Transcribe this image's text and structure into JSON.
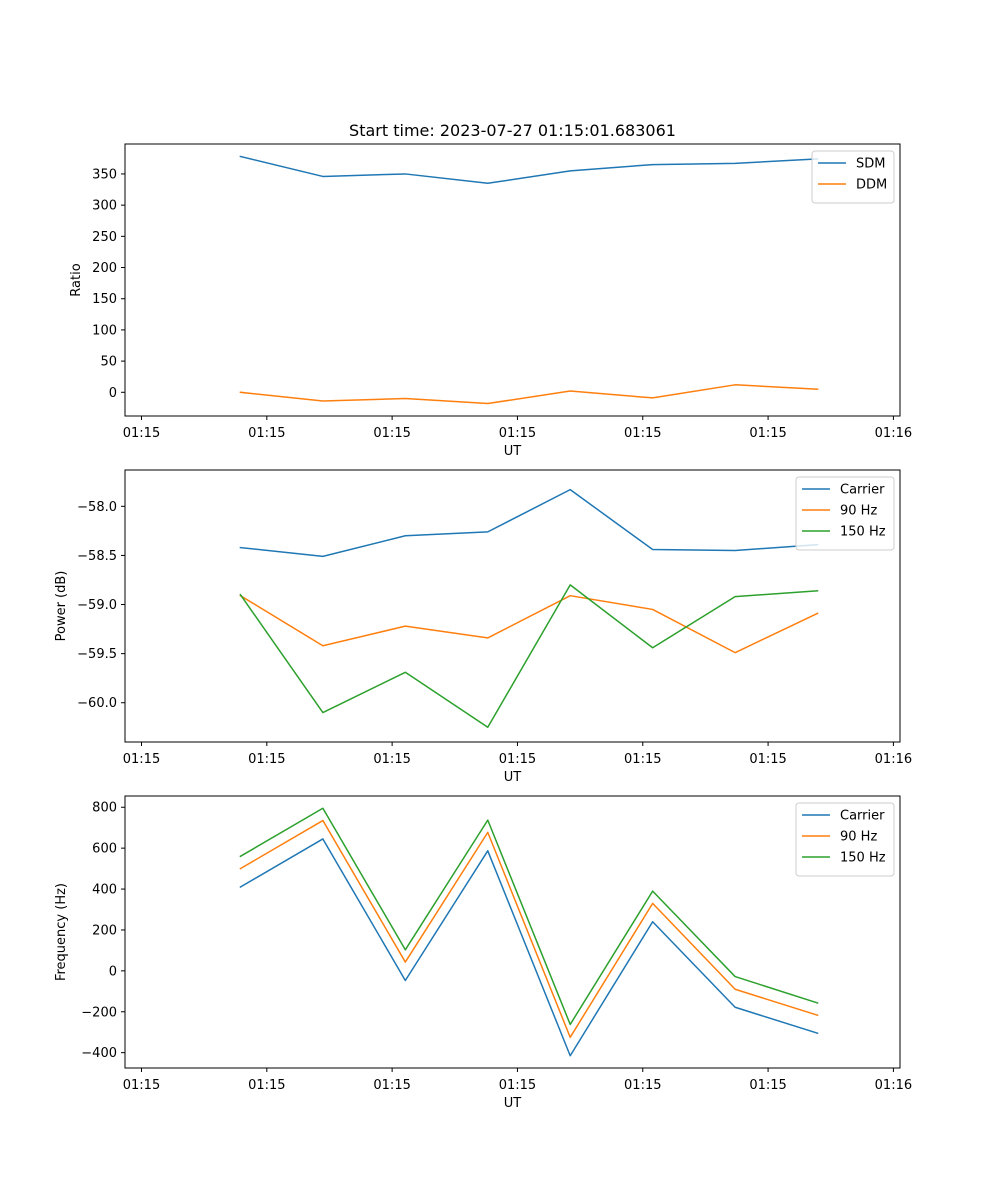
{
  "chart_data": [
    {
      "type": "line",
      "title": "Start time: 2023-07-27 01:15:01.683061",
      "xlabel": "UT",
      "ylabel": "Ratio",
      "xlim": [
        -0.4,
        9.0
      ],
      "ylim": [
        -38,
        398
      ],
      "x": [
        1,
        2,
        3,
        4,
        5,
        6,
        7,
        8
      ],
      "xticks": [
        -0.2,
        1.32,
        2.84,
        4.36,
        5.88,
        7.4,
        8.92
      ],
      "xtick_labels": [
        "01:15",
        "01:15",
        "01:15",
        "01:15",
        "01:15",
        "01:15",
        "01:16"
      ],
      "yticks": [
        0,
        50,
        100,
        150,
        200,
        250,
        300,
        350
      ],
      "ytick_labels": [
        "0",
        "50",
        "100",
        "150",
        "200",
        "250",
        "300",
        "350"
      ],
      "legend_position": "upper-right",
      "series": [
        {
          "name": "SDM",
          "color": "#1f77b4",
          "values": [
            378,
            346,
            350,
            335,
            355,
            365,
            367,
            374
          ]
        },
        {
          "name": "DDM",
          "color": "#ff7f0e",
          "values": [
            0,
            -14,
            -10,
            -18,
            2,
            -9,
            12,
            5
          ]
        }
      ]
    },
    {
      "type": "line",
      "title": "",
      "xlabel": "UT",
      "ylabel": "Power (dB)",
      "xlim": [
        -0.4,
        9.0
      ],
      "ylim": [
        -60.4,
        -57.63
      ],
      "x": [
        1,
        2,
        3,
        4,
        5,
        6,
        7,
        8
      ],
      "xticks": [
        -0.2,
        1.32,
        2.84,
        4.36,
        5.88,
        7.4,
        8.92
      ],
      "xtick_labels": [
        "01:15",
        "01:15",
        "01:15",
        "01:15",
        "01:15",
        "01:15",
        "01:16"
      ],
      "yticks": [
        -60.0,
        -59.5,
        -59.0,
        -58.5,
        -58.0
      ],
      "ytick_labels": [
        "−60.0",
        "−59.5",
        "−59.0",
        "−58.5",
        "−58.0"
      ],
      "legend_position": "upper-right",
      "series": [
        {
          "name": "Carrier",
          "color": "#1f77b4",
          "values": [
            -58.42,
            -58.51,
            -58.3,
            -58.26,
            -57.83,
            -58.44,
            -58.45,
            -58.39
          ]
        },
        {
          "name": "90 Hz",
          "color": "#ff7f0e",
          "values": [
            -58.91,
            -59.42,
            -59.22,
            -59.34,
            -58.91,
            -59.05,
            -59.49,
            -59.09
          ]
        },
        {
          "name": "150 Hz",
          "color": "#2ca02c",
          "values": [
            -58.9,
            -60.1,
            -59.69,
            -60.25,
            -58.8,
            -59.44,
            -58.92,
            -58.86
          ]
        }
      ]
    },
    {
      "type": "line",
      "title": "",
      "xlabel": "UT",
      "ylabel": "Frequency (Hz)",
      "xlim": [
        -0.4,
        9.0
      ],
      "ylim": [
        -475,
        855
      ],
      "x": [
        1,
        2,
        3,
        4,
        5,
        6,
        7,
        8
      ],
      "xticks": [
        -0.2,
        1.32,
        2.84,
        4.36,
        5.88,
        7.4,
        8.92
      ],
      "xtick_labels": [
        "01:15",
        "01:15",
        "01:15",
        "01:15",
        "01:15",
        "01:15",
        "01:16"
      ],
      "yticks": [
        -400,
        -200,
        0,
        200,
        400,
        600,
        800
      ],
      "ytick_labels": [
        "−400",
        "−200",
        "0",
        "200",
        "400",
        "600",
        "800"
      ],
      "legend_position": "upper-right",
      "series": [
        {
          "name": "Carrier",
          "color": "#1f77b4",
          "values": [
            410,
            645,
            -47,
            587,
            -415,
            240,
            -178,
            -305
          ]
        },
        {
          "name": "90 Hz",
          "color": "#ff7f0e",
          "values": [
            500,
            735,
            43,
            677,
            -325,
            330,
            -90,
            -217
          ]
        },
        {
          "name": "150 Hz",
          "color": "#2ca02c",
          "values": [
            560,
            795,
            103,
            737,
            -262,
            390,
            -28,
            -157
          ]
        }
      ]
    }
  ]
}
